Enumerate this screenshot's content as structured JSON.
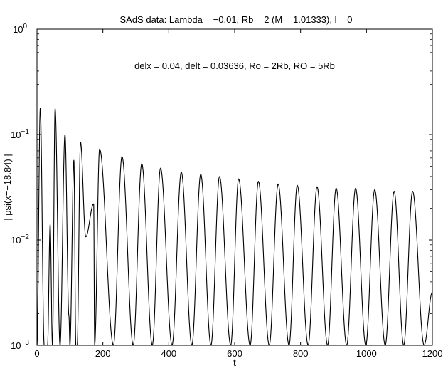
{
  "chart_data": {
    "type": "line",
    "title": "SAdS data: Lambda = −0.01, Rb = 2 (M = 1.01333), l = 0",
    "annotation": "delx = 0.04, delt = 0.03636, Ro = 2Rb, RO = 5Rb",
    "xlabel": "t",
    "ylabel": "| psi(x=−18.84) |",
    "xlim": [
      0,
      1200
    ],
    "ylim": [
      0.001,
      1
    ],
    "yscale": "log",
    "grid": false,
    "x_ticks": [
      0,
      200,
      400,
      600,
      800,
      1000,
      1200
    ],
    "y_ticks": [
      {
        "value": 0.001,
        "base": "10",
        "exp": "−3"
      },
      {
        "value": 0.01,
        "base": "10",
        "exp": "−2"
      },
      {
        "value": 0.1,
        "base": "10",
        "exp": "−1"
      },
      {
        "value": 1,
        "base": "10",
        "exp": "0"
      }
    ],
    "series": [
      {
        "color": "#000000",
        "x": [
          0,
          10,
          22,
          32,
          40,
          47,
          55,
          70,
          85,
          97,
          100,
          112,
          118,
          122,
          132,
          148,
          172,
          175,
          190,
          232,
          258,
          292,
          318,
          350,
          375,
          410,
          438,
          470,
          497,
          528,
          554,
          588,
          612,
          647,
          672,
          705,
          732,
          765,
          790,
          823,
          850,
          882,
          908,
          940,
          967,
          998,
          1025,
          1057,
          1084,
          1113,
          1140,
          1175,
          1200
        ],
        "y": [
          0.001,
          0.178,
          0.001,
          0.001,
          0.014,
          0.001,
          0.177,
          0.001,
          0.1,
          0.0019,
          0.001,
          0.057,
          0.001,
          0.001,
          0.085,
          0.0107,
          0.022,
          0.001,
          0.073,
          0.001,
          0.062,
          0.001,
          0.053,
          0.001,
          0.048,
          0.001,
          0.044,
          0.001,
          0.042,
          0.001,
          0.04,
          0.001,
          0.038,
          0.001,
          0.036,
          0.001,
          0.034,
          0.001,
          0.033,
          0.001,
          0.032,
          0.001,
          0.031,
          0.001,
          0.031,
          0.001,
          0.03,
          0.001,
          0.029,
          0.001,
          0.029,
          0.001,
          0.0032
        ]
      }
    ]
  }
}
